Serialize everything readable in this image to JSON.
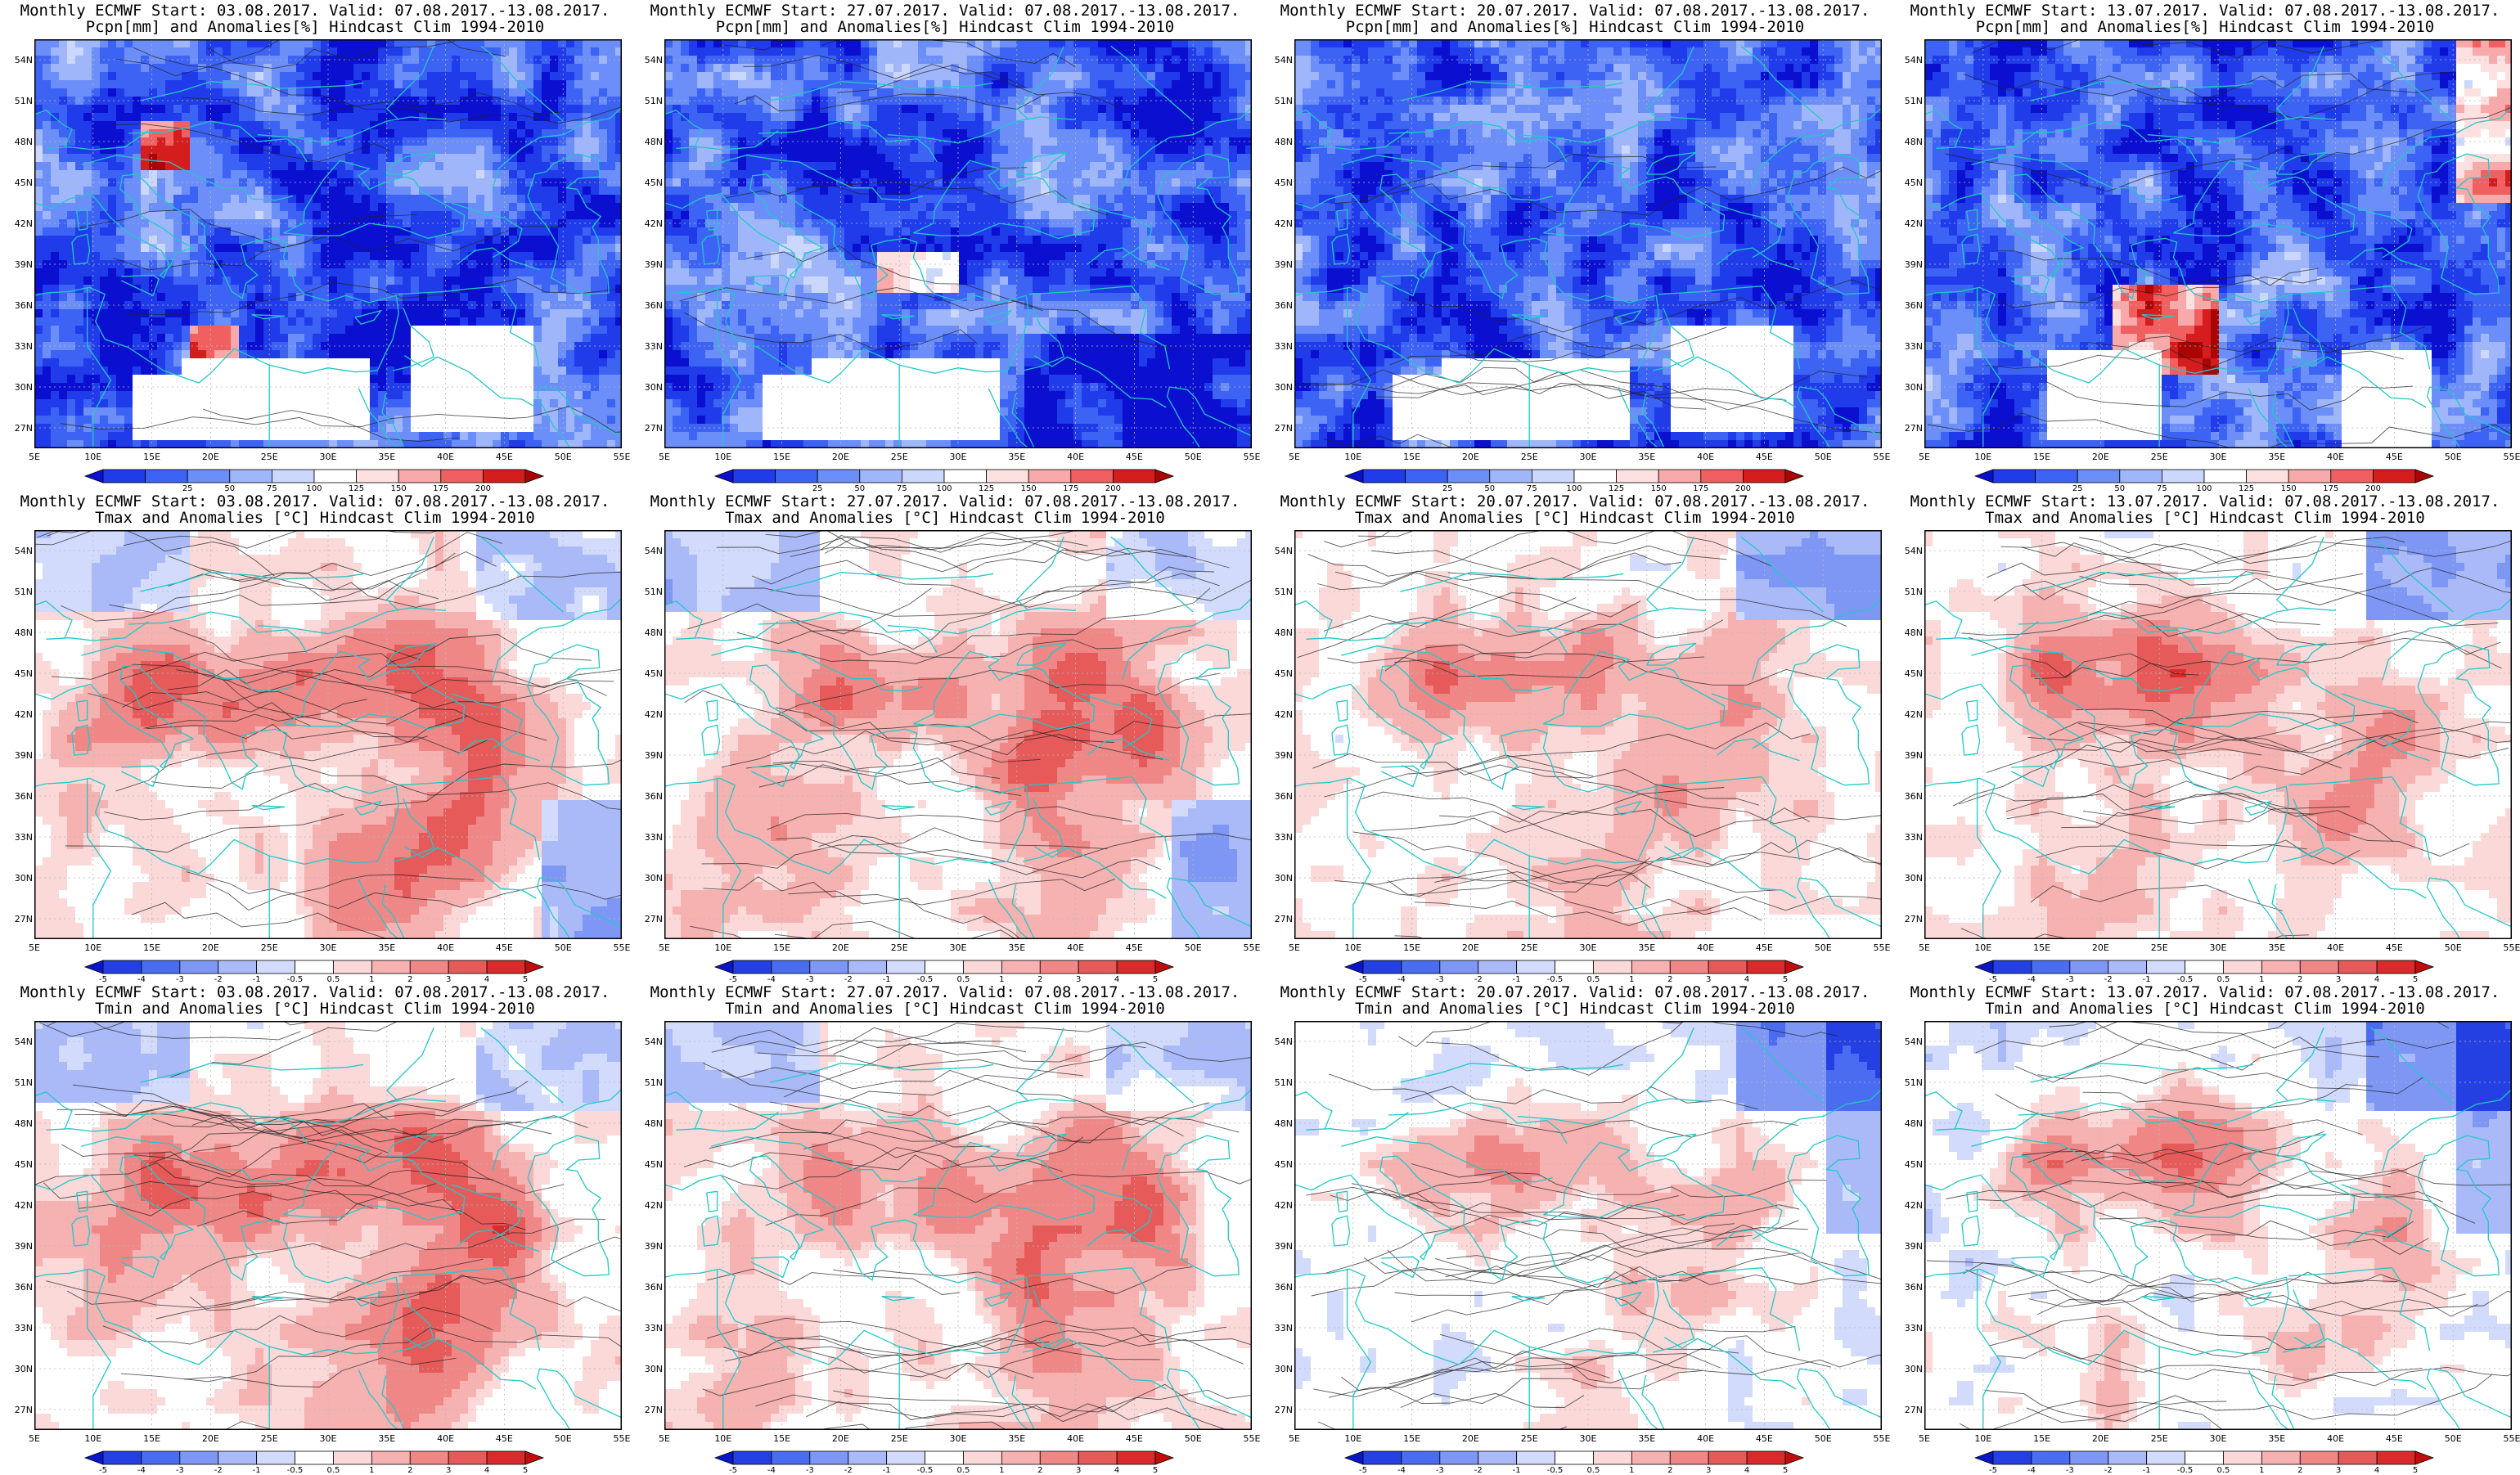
{
  "rows": [
    {
      "variable": "Pcpn[mm] and Anomalies[%] Hindcast Clim 1994-2010",
      "palette": "precip",
      "colorbar_labels": [
        "25",
        "50",
        "75",
        "100",
        "125",
        "150",
        "175",
        "200"
      ],
      "colors": [
        "#0b0fd0",
        "#1f3bea",
        "#3d63f5",
        "#6b8ef8",
        "#9fb7fa",
        "#cbd7fc",
        "#ffffff",
        "#fde0e0",
        "#f8a9a9",
        "#f06060",
        "#d61d1d",
        "#a90505"
      ]
    },
    {
      "variable": "Tmax and Anomalies [°C] Hindcast Clim 1994-2010",
      "palette": "temp",
      "colorbar_labels": [
        "-5",
        "-4",
        "-3",
        "-2",
        "-1",
        "-0.5",
        "0.5",
        "1",
        "2",
        "3",
        "4",
        "5"
      ],
      "colors": [
        "#0a17c9",
        "#2440e2",
        "#4a6cf0",
        "#7e97f5",
        "#aabaf8",
        "#d2dbfb",
        "#ffffff",
        "#fbd9d9",
        "#f6b1b1",
        "#f08787",
        "#e65a5a",
        "#d92b2b",
        "#c00d0d"
      ]
    },
    {
      "variable": "Tmin and Anomalies [°C] Hindcast Clim 1994-2010",
      "palette": "temp",
      "colorbar_labels": [
        "-5",
        "-4",
        "-3",
        "-2",
        "-1",
        "-0.5",
        "0.5",
        "1",
        "2",
        "3",
        "4",
        "5"
      ],
      "colors": [
        "#0a17c9",
        "#2440e2",
        "#4a6cf0",
        "#7e97f5",
        "#aabaf8",
        "#d2dbfb",
        "#ffffff",
        "#fbd9d9",
        "#f6b1b1",
        "#f08787",
        "#e65a5a",
        "#d92b2b",
        "#c00d0d"
      ]
    }
  ],
  "columns": [
    {
      "header": "Monthly ECMWF Start: 03.08.2017. Valid: 07.08.2017.-13.08.2017."
    },
    {
      "header": "Monthly ECMWF Start: 27.07.2017. Valid: 07.08.2017.-13.08.2017."
    },
    {
      "header": "Monthly ECMWF Start: 20.07.2017. Valid: 07.08.2017.-13.08.2017."
    },
    {
      "header": "Monthly ECMWF Start: 13.07.2017. Valid: 07.08.2017.-13.08.2017."
    }
  ],
  "lat_labels": [
    "54N",
    "51N",
    "48N",
    "45N",
    "42N",
    "39N",
    "36N",
    "33N",
    "30N",
    "27N"
  ],
  "lon_labels": [
    "5E",
    "10E",
    "15E",
    "20E",
    "25E",
    "30E",
    "35E",
    "40E",
    "45E",
    "50E",
    "55E"
  ],
  "map_extent": {
    "lon": [
      5,
      55
    ],
    "lat": [
      25.5,
      55.5
    ]
  },
  "colors": {
    "coastline": "#22c8c8",
    "contour": "#222222",
    "frame": "#000000",
    "grid": "#b8b8b8"
  }
}
